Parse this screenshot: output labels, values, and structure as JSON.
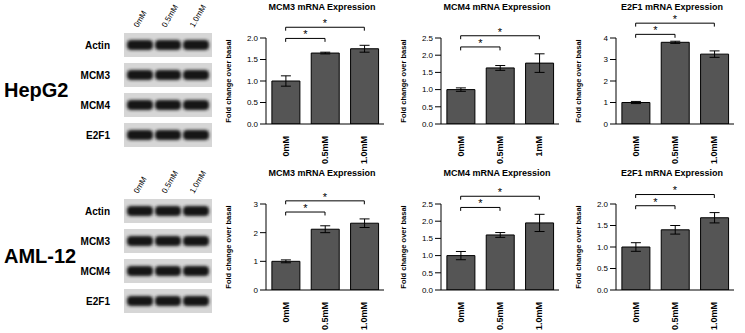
{
  "blots": [
    {
      "title": "HepG2",
      "lanes": [
        "0mM",
        "0.5mM",
        "1.0mM"
      ],
      "rows": [
        "Actin",
        "MCM3",
        "MCM4",
        "E2F1"
      ]
    },
    {
      "title": "AML-12",
      "lanes": [
        "0mM",
        "0.5mM",
        "1.0mM"
      ],
      "rows": [
        "Actin",
        "MCM3",
        "MCM4",
        "E2F1"
      ]
    }
  ],
  "chart_data": [
    {
      "type": "bar",
      "title": "MCM3 mRNA Expression",
      "ylabel": "Fold change over basal",
      "categories": [
        "0mM",
        "0.5mM",
        "1.0mM"
      ],
      "values": [
        1.0,
        1.65,
        1.75
      ],
      "errors": [
        0.12,
        0.02,
        0.08
      ],
      "color": "#555555",
      "ylim": [
        0,
        2
      ],
      "yticks": [
        {
          "value": 0,
          "label": "0.0"
        },
        0.5,
        {
          "value": 1,
          "label": "1.0"
        },
        1.5,
        {
          "value": 2,
          "label": "2.0"
        }
      ],
      "annotations": [
        {
          "text": "*",
          "from": "0mM",
          "to": "0.5mM"
        },
        {
          "text": "*",
          "from": "0mM",
          "to": "1.0mM"
        }
      ]
    },
    {
      "type": "bar",
      "title": "MCM4 mRNA Expression",
      "ylabel": "Fold change over basal",
      "categories": [
        "0mM",
        "0.5mM",
        "1mM"
      ],
      "values": [
        1.0,
        1.63,
        1.77
      ],
      "errors": [
        0.05,
        0.07,
        0.27
      ],
      "color": "#555555",
      "ylim": [
        0,
        2.5
      ],
      "yticks": [
        {
          "value": 0,
          "label": "0.0"
        },
        0.5,
        {
          "value": 1,
          "label": "1.0"
        },
        1.5,
        {
          "value": 2,
          "label": "2.0"
        },
        2.5
      ],
      "annotations": [
        {
          "text": "*",
          "from": "0mM",
          "to": "0.5mM"
        },
        {
          "text": "*",
          "from": "0mM",
          "to": "1mM"
        }
      ]
    },
    {
      "type": "bar",
      "title": "E2F1 mRNA Expression",
      "ylabel": "Fold change over basal",
      "categories": [
        "0mM",
        "0.5mM",
        "1.0mM"
      ],
      "values": [
        1.0,
        3.8,
        3.25
      ],
      "errors": [
        0.05,
        0.05,
        0.15
      ],
      "color": "#555555",
      "ylim": [
        0,
        4
      ],
      "yticks": [
        0,
        1,
        2,
        3,
        4
      ],
      "annotations": [
        {
          "text": "*",
          "from": "0mM",
          "to": "0.5mM"
        },
        {
          "text": "*",
          "from": "0mM",
          "to": "1.0mM"
        }
      ]
    },
    {
      "type": "bar",
      "title": "MCM3 mRNA Expression",
      "ylabel": "Fold change over basal",
      "categories": [
        "0mM",
        "0.5mM",
        "1.0mM"
      ],
      "values": [
        1.0,
        2.12,
        2.33
      ],
      "errors": [
        0.05,
        0.12,
        0.15
      ],
      "color": "#555555",
      "ylim": [
        0,
        3
      ],
      "yticks": [
        0,
        1,
        2,
        3
      ],
      "annotations": [
        {
          "text": "*",
          "from": "0mM",
          "to": "0.5mM"
        },
        {
          "text": "*",
          "from": "0mM",
          "to": "1.0mM"
        }
      ]
    },
    {
      "type": "bar",
      "title": "MCM4 mRNA Expression",
      "ylabel": "Fold change over basal",
      "categories": [
        "0mM",
        "0.5mM",
        "1.0mM"
      ],
      "values": [
        1.0,
        1.6,
        1.95
      ],
      "errors": [
        0.12,
        0.07,
        0.25
      ],
      "color": "#555555",
      "ylim": [
        0,
        2.5
      ],
      "yticks": [
        {
          "value": 0,
          "label": "0.0"
        },
        0.5,
        {
          "value": 1,
          "label": "1.0"
        },
        1.5,
        {
          "value": 2,
          "label": "2.0"
        },
        2.5
      ],
      "annotations": [
        {
          "text": "*",
          "from": "0mM",
          "to": "0.5mM"
        },
        {
          "text": "*",
          "from": "0mM",
          "to": "1.0mM"
        }
      ]
    },
    {
      "type": "bar",
      "title": "E2F1 mRNA Expression",
      "ylabel": "Fold change over basal",
      "categories": [
        "0mM",
        "0.5mM",
        "1.0mM"
      ],
      "values": [
        1.0,
        1.4,
        1.68
      ],
      "errors": [
        0.1,
        0.1,
        0.12
      ],
      "color": "#555555",
      "ylim": [
        0,
        2
      ],
      "yticks": [
        {
          "value": 0,
          "label": "0.0"
        },
        0.5,
        {
          "value": 1,
          "label": "1.0"
        },
        1.5,
        {
          "value": 2,
          "label": "2.0"
        }
      ],
      "annotations": [
        {
          "text": "*",
          "from": "0mM",
          "to": "0.5mM"
        },
        {
          "text": "*",
          "from": "0mM",
          "to": "1.0mM"
        }
      ]
    }
  ]
}
